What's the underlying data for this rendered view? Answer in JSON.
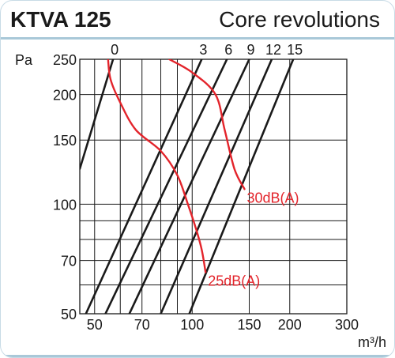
{
  "header": {
    "model": "KTVA 125",
    "subtitle": "Core revolutions"
  },
  "chart_data": {
    "type": "line",
    "title": "KTVA 125",
    "subtitle": "Core revolutions",
    "xlabel": "m³/h",
    "ylabel": "Pa",
    "x_scale": "log",
    "y_scale": "log",
    "xlim": [
      45,
      300
    ],
    "ylim": [
      50,
      250
    ],
    "x_ticks": [
      50,
      70,
      100,
      150,
      200,
      300
    ],
    "x_tick_labels": [
      "50",
      "70",
      "100",
      "150",
      "200",
      "300"
    ],
    "x_minor_grid": [
      60,
      80,
      90
    ],
    "y_ticks": [
      50,
      70,
      100,
      150,
      200,
      250
    ],
    "y_tick_labels": [
      "50",
      "70",
      "100",
      "150",
      "200",
      "250"
    ],
    "y_minor_grid": [
      60,
      80,
      90
    ],
    "grid": true,
    "revolution_series": [
      {
        "name": "0",
        "points": [
          [
            45,
            125
          ],
          [
            57,
            250
          ]
        ]
      },
      {
        "name": "3",
        "points": [
          [
            47,
            50
          ],
          [
            107,
            250
          ]
        ]
      },
      {
        "name": "6",
        "points": [
          [
            54,
            50
          ],
          [
            128,
            250
          ]
        ]
      },
      {
        "name": "9",
        "points": [
          [
            64,
            50
          ],
          [
            150,
            250
          ]
        ]
      },
      {
        "name": "12",
        "points": [
          [
            80,
            50
          ],
          [
            176,
            250
          ]
        ]
      },
      {
        "name": "15",
        "points": [
          [
            98,
            50
          ],
          [
            205,
            250
          ]
        ]
      }
    ],
    "noise_series": [
      {
        "name": "30dB(A)",
        "points": [
          [
            85,
            250
          ],
          [
            100,
            230
          ],
          [
            118,
            200
          ],
          [
            126,
            160
          ],
          [
            135,
            125
          ],
          [
            145,
            110
          ]
        ]
      },
      {
        "name": "25dB(A)",
        "points": [
          [
            55,
            250
          ],
          [
            56,
            220
          ],
          [
            60,
            190
          ],
          [
            67,
            160
          ],
          [
            80,
            140
          ],
          [
            90,
            120
          ],
          [
            97,
            100
          ],
          [
            103,
            85
          ],
          [
            107,
            75
          ],
          [
            110,
            65
          ]
        ]
      }
    ]
  },
  "palette": {
    "grid": "#1a1a1a",
    "revolution_line": "#1a1a1a",
    "noise_line": "#e3242b",
    "rule": "#a9c8d8"
  }
}
